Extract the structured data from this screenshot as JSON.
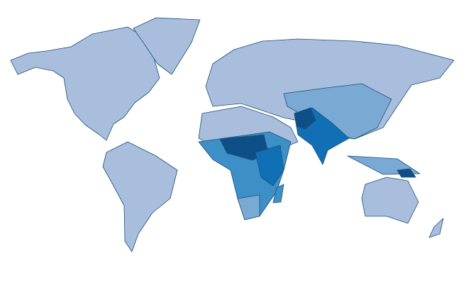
{
  "map": {
    "colors": [
      "#a8bedc",
      "#7aaad3",
      "#3d8fc8",
      "#1170b5",
      "#0d4f86"
    ]
  }
}
